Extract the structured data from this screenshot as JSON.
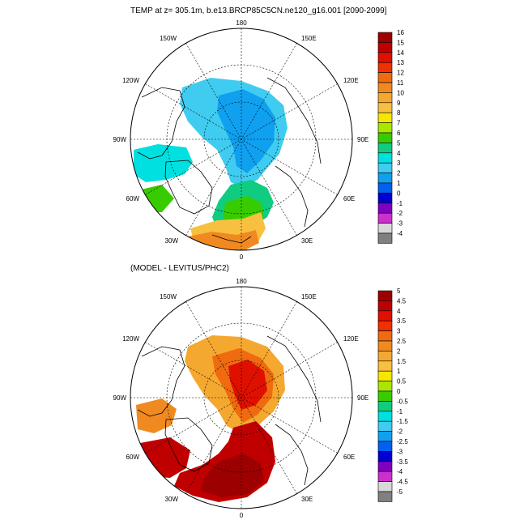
{
  "panels": [
    {
      "title": "TEMP at z= 305.1m, b.e13.BRCP85C5CN.ne120_g16.001 [2090-2099]",
      "longitude_labels": {
        "top": "180",
        "bottom": "0",
        "left": "90W",
        "right": "90E",
        "upper_left_1": "150W",
        "upper_left_2": "120W",
        "upper_right_1": "150E",
        "upper_right_2": "120E",
        "lower_left_1": "60W",
        "lower_left_2": "30W",
        "lower_right_1": "60E",
        "lower_right_2": "30E"
      },
      "colorbar": {
        "labels": [
          "16",
          "15",
          "14",
          "13",
          "12",
          "11",
          "10",
          "9",
          "8",
          "7",
          "6",
          "5",
          "4",
          "3",
          "2",
          "1",
          "0",
          "-1",
          "-2",
          "-3",
          "-4"
        ],
        "colors": [
          "#9c0000",
          "#c00000",
          "#e01000",
          "#f03000",
          "#f06a10",
          "#f08a20",
          "#f5a830",
          "#f8c040",
          "#f5e800",
          "#a8e800",
          "#38cc00",
          "#10cc80",
          "#00e0e0",
          "#40ccf0",
          "#10a0f0",
          "#0060f0",
          "#0000d0",
          "#8000c0",
          "#cc30cc",
          "#d8d8d8",
          "#808080"
        ]
      }
    },
    {
      "title": "(MODEL - LEVITUS/PHC2)",
      "longitude_labels": {
        "top": "180",
        "bottom": "0",
        "left": "90W",
        "right": "90E",
        "upper_left_1": "150W",
        "upper_left_2": "120W",
        "upper_right_1": "150E",
        "upper_right_2": "120E",
        "lower_left_1": "60W",
        "lower_left_2": "30W",
        "lower_right_1": "60E",
        "lower_right_2": "30E"
      },
      "colorbar": {
        "labels": [
          "5",
          "4.5",
          "4",
          "3.5",
          "3",
          "2.5",
          "2",
          "1.5",
          "1",
          "0.5",
          "0",
          "-0.5",
          "-1",
          "-1.5",
          "-2",
          "-2.5",
          "-3",
          "-3.5",
          "-4",
          "-4.5",
          "-5"
        ],
        "colors": [
          "#9c0000",
          "#c00000",
          "#e01000",
          "#f03000",
          "#f06a10",
          "#f08a20",
          "#f5a830",
          "#f8c040",
          "#f5e800",
          "#a8e800",
          "#38cc00",
          "#10cc80",
          "#00e0e0",
          "#40ccf0",
          "#10a0f0",
          "#0060f0",
          "#0000d0",
          "#8000c0",
          "#cc30cc",
          "#d8d8d8",
          "#808080"
        ]
      }
    }
  ],
  "colors": {
    "grid": "#000000",
    "land_outline": "#000000"
  }
}
